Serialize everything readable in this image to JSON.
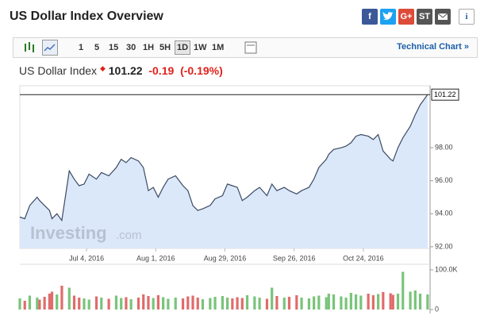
{
  "header": {
    "title": "US Dollar Index Overview",
    "share": [
      "f",
      "G+",
      "ST"
    ],
    "info": "i"
  },
  "toolbar": {
    "intervals": [
      "1",
      "5",
      "15",
      "30",
      "1H",
      "5H",
      "1D",
      "1W",
      "1M"
    ],
    "link": "Technical Chart »"
  },
  "quote": {
    "name": "US Dollar Index",
    "price": "101.22",
    "change": "-0.19",
    "change_pct": "(-0.19%)"
  },
  "chart_data": {
    "type": "line",
    "color": "#3c4a63",
    "fill": "#dbe8fa",
    "watermark": [
      "Investing",
      ".com"
    ],
    "x": [
      "2016-06-07",
      "2016-06-09",
      "2016-06-11",
      "2016-06-14",
      "2016-06-15",
      "2016-06-17",
      "2016-06-19",
      "2016-06-20",
      "2016-06-22",
      "2016-06-24",
      "2016-06-27",
      "2016-06-29",
      "2016-07-01",
      "2016-07-03",
      "2016-07-05",
      "2016-07-08",
      "2016-07-10",
      "2016-07-13",
      "2016-07-16",
      "2016-07-18",
      "2016-07-20",
      "2016-07-22",
      "2016-07-25",
      "2016-07-27",
      "2016-07-29",
      "2016-07-31",
      "2016-08-02",
      "2016-08-04",
      "2016-08-06",
      "2016-08-09",
      "2016-08-12",
      "2016-08-14",
      "2016-08-16",
      "2016-08-18",
      "2016-08-20",
      "2016-08-23",
      "2016-08-25",
      "2016-08-28",
      "2016-08-30",
      "2016-09-01",
      "2016-09-03",
      "2016-09-05",
      "2016-09-07",
      "2016-09-10",
      "2016-09-12",
      "2016-09-15",
      "2016-09-17",
      "2016-09-19",
      "2016-09-22",
      "2016-09-24",
      "2016-09-27",
      "2016-09-29",
      "2016-10-02",
      "2016-10-04",
      "2016-10-06",
      "2016-10-09",
      "2016-10-10",
      "2016-10-12",
      "2016-10-15",
      "2016-10-17",
      "2016-10-19",
      "2016-10-21",
      "2016-10-23",
      "2016-10-26",
      "2016-10-28",
      "2016-10-30",
      "2016-11-01",
      "2016-11-04",
      "2016-11-05",
      "2016-11-07",
      "2016-11-09",
      "2016-11-12",
      "2016-11-14",
      "2016-11-16",
      "2016-11-19"
    ],
    "values": [
      93.8,
      93.7,
      94.5,
      95.0,
      94.8,
      94.5,
      94.2,
      93.7,
      94.0,
      93.6,
      96.6,
      96.1,
      95.7,
      95.8,
      96.4,
      96.1,
      96.5,
      96.3,
      96.8,
      97.3,
      97.1,
      97.4,
      97.2,
      96.8,
      95.4,
      95.6,
      95.0,
      95.6,
      96.1,
      96.3,
      95.7,
      95.4,
      94.5,
      94.2,
      94.3,
      94.5,
      94.9,
      95.1,
      95.8,
      95.7,
      95.6,
      94.8,
      95.0,
      95.4,
      95.6,
      95.1,
      95.8,
      95.4,
      95.6,
      95.4,
      95.2,
      95.4,
      95.6,
      96.1,
      96.8,
      97.3,
      97.6,
      97.9,
      98.0,
      98.1,
      98.3,
      98.7,
      98.8,
      98.7,
      98.5,
      98.8,
      97.8,
      97.3,
      97.2,
      98.0,
      98.6,
      99.3,
      100.0,
      100.6,
      101.22
    ],
    "last_value": {
      "value": 101.22,
      "label": "101.22"
    },
    "xlim": [
      "2016-06-07",
      "2016-11-20"
    ],
    "xticks": [
      {
        "value": "2016-07-04",
        "label": "Jul 4, 2016"
      },
      {
        "value": "2016-08-01",
        "label": "Aug 1, 2016"
      },
      {
        "value": "2016-08-29",
        "label": "Aug 29, 2016"
      },
      {
        "value": "2016-09-26",
        "label": "Sep 26, 2016"
      },
      {
        "value": "2016-10-24",
        "label": "Oct 24, 2016"
      }
    ],
    "ylim": [
      91.9,
      101.76
    ],
    "yticks": [
      {
        "value": 92,
        "label": "92.00"
      },
      {
        "value": 94,
        "label": "94.00"
      },
      {
        "value": 96,
        "label": "96.00"
      },
      {
        "value": 98,
        "label": "98.00"
      }
    ],
    "grid": false,
    "volume": {
      "type": "bar",
      "up_color": "#79c47a",
      "down_color": "#e06c6c",
      "values": [
        28000,
        22000,
        35000,
        30000,
        25000,
        32000,
        40000,
        45000,
        38000,
        60000,
        55000,
        35000,
        30000,
        28000,
        25000,
        33000,
        30000,
        27000,
        35000,
        29000,
        31000,
        26000,
        30000,
        38000,
        34000,
        29000,
        36000,
        31000,
        27000,
        30000,
        28000,
        33000,
        35000,
        30000,
        26000,
        29000,
        32000,
        34000,
        30000,
        28000,
        31000,
        29000,
        36000,
        33000,
        30000,
        27000,
        55000,
        34000,
        30000,
        32000,
        36000,
        30000,
        28000,
        33000,
        35000,
        31000,
        40000,
        38000,
        33000,
        30000,
        42000,
        38000,
        35000,
        40000,
        36000,
        39000,
        44000,
        41000,
        37000,
        40000,
        95000,
        45000,
        48000,
        40000,
        38000
      ],
      "ylim": [
        0,
        100000
      ],
      "yticks": [
        0,
        {
          "value": 100000,
          "label": "100.0K"
        }
      ]
    }
  }
}
